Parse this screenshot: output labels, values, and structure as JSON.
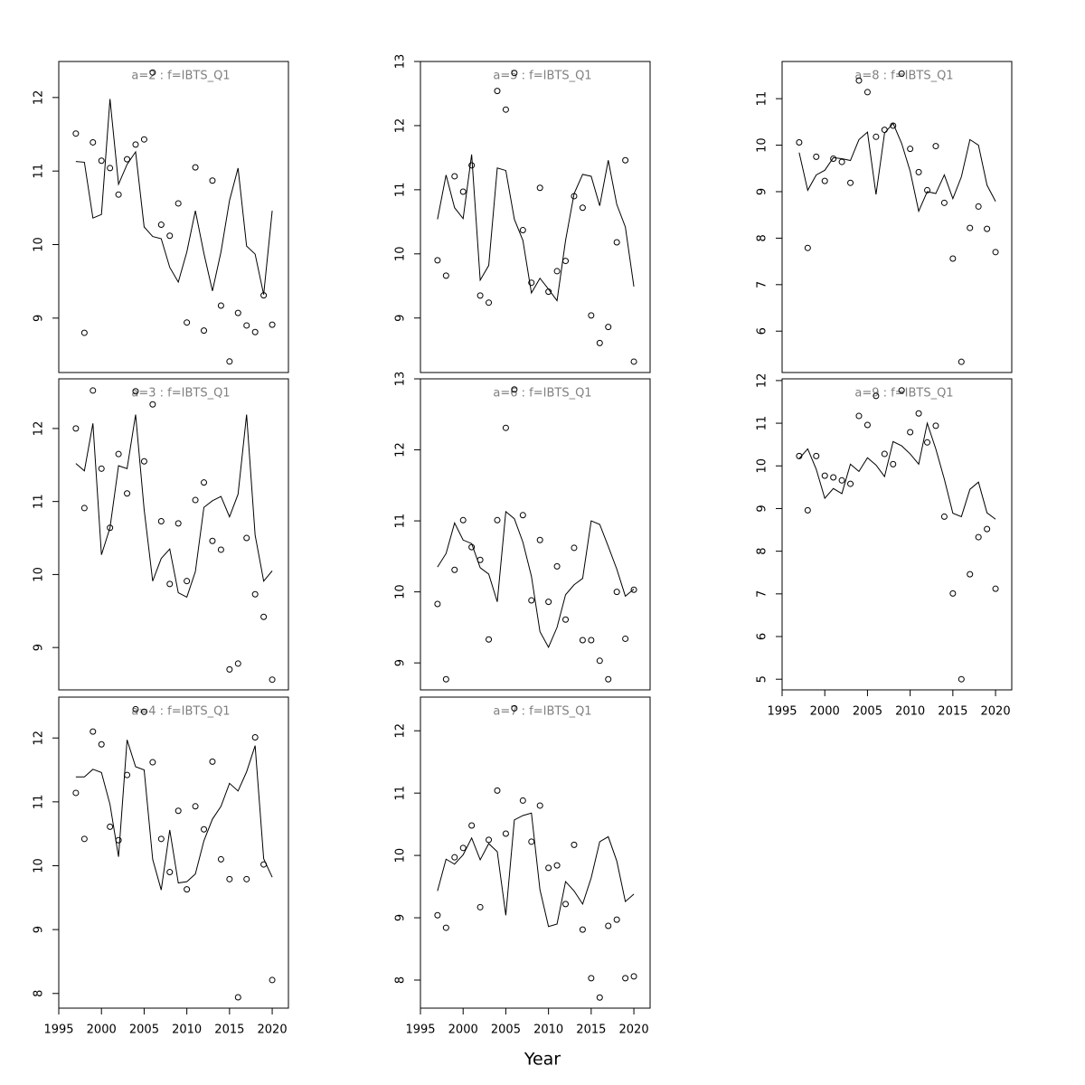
{
  "x_label": "Year",
  "chart_data": [
    {
      "type": "fit",
      "title": "a=2  :  f=IBTS_Q1",
      "x_axis": false,
      "x": [
        1997,
        1998,
        1999,
        2000,
        2001,
        2002,
        2003,
        2004,
        2005,
        2006,
        2007,
        2008,
        2009,
        2010,
        2011,
        2012,
        2013,
        2014,
        2015,
        2016,
        2017,
        2018,
        2019,
        2020
      ],
      "observed": [
        11.51,
        8.8,
        11.39,
        11.14,
        11.04,
        10.68,
        11.16,
        11.36,
        11.43,
        12.34,
        10.27,
        10.12,
        10.56,
        8.94,
        11.05,
        8.83,
        10.87,
        9.17,
        8.41,
        9.07,
        8.9,
        8.81,
        9.31,
        8.91
      ],
      "fitted": [
        11.13,
        11.12,
        10.36,
        10.41,
        11.98,
        10.82,
        11.09,
        11.26,
        10.24,
        10.11,
        10.08,
        9.69,
        9.49,
        9.9,
        10.46,
        9.88,
        9.37,
        9.9,
        10.6,
        11.04,
        9.98,
        9.87,
        9.32,
        10.46
      ],
      "xlim": [
        1995,
        2021.9
      ],
      "xticks": [
        1995,
        2000,
        2005,
        2010,
        2015,
        2020
      ],
      "ylim": [
        8.26,
        12.49
      ],
      "yticks": [
        9,
        10,
        11,
        12
      ]
    },
    {
      "type": "fit",
      "title": "a=3  :  f=IBTS_Q1",
      "x_axis": false,
      "x": [
        1997,
        1998,
        1999,
        2000,
        2001,
        2002,
        2003,
        2004,
        2005,
        2006,
        2007,
        2008,
        2009,
        2010,
        2011,
        2012,
        2013,
        2014,
        2015,
        2016,
        2017,
        2018,
        2019,
        2020
      ],
      "observed": [
        12.0,
        10.91,
        12.52,
        11.45,
        10.64,
        11.65,
        11.11,
        12.51,
        11.55,
        12.33,
        10.73,
        9.87,
        10.7,
        9.91,
        11.02,
        11.26,
        10.46,
        10.34,
        8.7,
        8.78,
        10.5,
        9.73,
        9.42,
        8.56
      ],
      "fitted": [
        11.52,
        11.42,
        12.07,
        10.27,
        10.64,
        11.49,
        11.45,
        12.19,
        10.89,
        9.91,
        10.22,
        10.35,
        9.75,
        9.69,
        10.04,
        10.92,
        11.01,
        11.07,
        10.79,
        11.1,
        12.19,
        10.54,
        9.91,
        10.05
      ],
      "xlim": [
        1995,
        2021.9
      ],
      "xticks": [
        1995,
        2000,
        2005,
        2010,
        2015,
        2020
      ],
      "ylim": [
        8.42,
        12.68
      ],
      "yticks": [
        9,
        10,
        11,
        12
      ]
    },
    {
      "type": "fit",
      "title": "a=4  :  f=IBTS_Q1",
      "x_axis": true,
      "x": [
        1997,
        1998,
        1999,
        2000,
        2001,
        2002,
        2003,
        2004,
        2005,
        2006,
        2007,
        2008,
        2009,
        2010,
        2011,
        2012,
        2013,
        2014,
        2015,
        2016,
        2017,
        2018,
        2019,
        2020
      ],
      "observed": [
        11.14,
        10.42,
        12.1,
        11.9,
        10.61,
        10.4,
        11.42,
        12.45,
        12.41,
        11.62,
        10.42,
        9.9,
        10.86,
        9.63,
        10.93,
        10.57,
        11.63,
        10.1,
        9.79,
        7.94,
        9.79,
        12.01,
        10.02,
        8.21
      ],
      "fitted": [
        11.39,
        11.39,
        11.51,
        11.46,
        10.96,
        10.14,
        11.97,
        11.55,
        11.5,
        10.1,
        9.62,
        10.56,
        9.73,
        9.75,
        9.87,
        10.39,
        10.73,
        10.93,
        11.29,
        11.17,
        11.47,
        11.88,
        10.11,
        9.82
      ],
      "xlim": [
        1995,
        2021.9
      ],
      "xticks": [
        1995,
        2000,
        2005,
        2010,
        2015,
        2020
      ],
      "ylim": [
        7.77,
        12.64
      ],
      "yticks": [
        8,
        9,
        10,
        11,
        12
      ]
    },
    {
      "type": "fit",
      "title": "a=5  :  f=IBTS_Q1",
      "x_axis": false,
      "x": [
        1997,
        1998,
        1999,
        2000,
        2001,
        2002,
        2003,
        2004,
        2005,
        2006,
        2007,
        2008,
        2009,
        2010,
        2011,
        2012,
        2013,
        2014,
        2015,
        2016,
        2017,
        2018,
        2019,
        2020
      ],
      "observed": [
        9.9,
        9.66,
        11.21,
        10.97,
        11.38,
        9.35,
        9.24,
        12.54,
        12.25,
        12.82,
        10.37,
        9.55,
        11.03,
        9.41,
        9.73,
        9.89,
        10.9,
        10.72,
        9.04,
        8.61,
        8.86,
        10.18,
        11.46,
        8.32
      ],
      "fitted": [
        10.54,
        11.23,
        10.72,
        10.55,
        11.55,
        9.59,
        9.82,
        11.34,
        11.3,
        10.54,
        10.21,
        9.39,
        9.62,
        9.45,
        9.27,
        10.21,
        10.94,
        11.24,
        11.21,
        10.75,
        11.46,
        10.77,
        10.42,
        9.49
      ],
      "xlim": [
        1995,
        2021.9
      ],
      "xticks": [
        1995,
        2000,
        2005,
        2010,
        2015,
        2020
      ],
      "ylim": [
        8.15,
        13
      ],
      "yticks": [
        9,
        10,
        11,
        12,
        13
      ]
    },
    {
      "type": "fit",
      "title": "a=6  :  f=IBTS_Q1",
      "x_axis": false,
      "x": [
        1997,
        1998,
        1999,
        2000,
        2001,
        2002,
        2003,
        2004,
        2005,
        2006,
        2007,
        2008,
        2009,
        2010,
        2011,
        2012,
        2013,
        2014,
        2015,
        2016,
        2017,
        2018,
        2019,
        2020
      ],
      "observed": [
        9.83,
        8.77,
        10.31,
        11.01,
        10.63,
        10.45,
        9.33,
        11.01,
        12.31,
        12.85,
        11.08,
        9.88,
        10.73,
        9.86,
        10.36,
        9.61,
        10.62,
        9.32,
        9.32,
        9.03,
        8.77,
        10.0,
        9.34,
        10.03
      ],
      "fitted": [
        10.35,
        10.54,
        10.97,
        10.73,
        10.68,
        10.34,
        10.25,
        9.86,
        11.13,
        11.03,
        10.7,
        10.22,
        9.44,
        9.22,
        9.5,
        9.96,
        10.1,
        10.19,
        11.0,
        10.95,
        10.64,
        10.32,
        9.94,
        10.04
      ],
      "xlim": [
        1995,
        2021.9
      ],
      "xticks": [
        1995,
        2000,
        2005,
        2010,
        2015,
        2020
      ],
      "ylim": [
        8.62,
        13
      ],
      "yticks": [
        9,
        10,
        11,
        12,
        13
      ]
    },
    {
      "type": "fit",
      "title": "a=7  :  f=IBTS_Q1",
      "x_axis": true,
      "x": [
        1997,
        1998,
        1999,
        2000,
        2001,
        2002,
        2003,
        2004,
        2005,
        2006,
        2007,
        2008,
        2009,
        2010,
        2011,
        2012,
        2013,
        2014,
        2015,
        2016,
        2017,
        2018,
        2019,
        2020
      ],
      "observed": [
        9.04,
        8.84,
        9.97,
        10.12,
        10.48,
        9.17,
        10.25,
        11.04,
        10.35,
        12.36,
        10.88,
        10.22,
        10.8,
        9.8,
        9.84,
        9.22,
        10.17,
        8.81,
        8.03,
        7.72,
        8.87,
        8.97,
        8.03,
        8.06
      ],
      "fitted": [
        9.43,
        9.94,
        9.86,
        10.01,
        10.28,
        9.93,
        10.19,
        10.06,
        9.04,
        10.57,
        10.64,
        10.68,
        9.45,
        8.86,
        8.9,
        9.58,
        9.43,
        9.22,
        9.64,
        10.22,
        10.3,
        9.91,
        9.26,
        9.38
      ],
      "xlim": [
        1995,
        2021.9
      ],
      "xticks": [
        1995,
        2000,
        2005,
        2010,
        2015,
        2020
      ],
      "ylim": [
        7.55,
        12.54
      ],
      "yticks": [
        8,
        9,
        10,
        11,
        12
      ]
    },
    {
      "type": "fit",
      "title": "a=8  :  f=IBTS_Q1",
      "x_axis": false,
      "x": [
        1997,
        1998,
        1999,
        2000,
        2001,
        2002,
        2003,
        2004,
        2005,
        2006,
        2007,
        2008,
        2009,
        2010,
        2011,
        2012,
        2013,
        2014,
        2015,
        2016,
        2017,
        2018,
        2019,
        2020
      ],
      "observed": [
        10.06,
        7.79,
        9.75,
        9.23,
        9.71,
        9.64,
        9.19,
        11.39,
        11.14,
        10.18,
        10.33,
        10.42,
        11.54,
        9.92,
        9.42,
        9.03,
        9.98,
        8.76,
        7.56,
        5.34,
        8.22,
        8.68,
        8.2,
        7.7
      ],
      "fitted": [
        9.84,
        9.03,
        9.36,
        9.46,
        9.73,
        9.71,
        9.67,
        10.12,
        10.28,
        8.94,
        10.26,
        10.47,
        10.04,
        9.44,
        8.58,
        9.0,
        8.96,
        9.36,
        8.85,
        9.32,
        10.12,
        10.0,
        9.14,
        8.79
      ],
      "xlim": [
        1995,
        2021.9
      ],
      "xticks": [
        1995,
        2000,
        2005,
        2010,
        2015,
        2020
      ],
      "ylim": [
        5.11,
        11.8
      ],
      "yticks": [
        6,
        7,
        8,
        9,
        10,
        11
      ]
    },
    {
      "type": "fit",
      "title": "a=9  :  f=IBTS_Q1",
      "x_axis": true,
      "x": [
        1997,
        1998,
        1999,
        2000,
        2001,
        2002,
        2003,
        2004,
        2005,
        2006,
        2007,
        2008,
        2009,
        2010,
        2011,
        2012,
        2013,
        2014,
        2015,
        2016,
        2017,
        2018,
        2019,
        2020
      ],
      "observed": [
        10.23,
        8.96,
        10.23,
        9.77,
        9.73,
        9.66,
        9.58,
        11.17,
        10.96,
        11.64,
        10.28,
        10.04,
        11.77,
        10.79,
        11.23,
        10.55,
        10.94,
        8.81,
        7.01,
        5.0,
        7.46,
        8.33,
        8.52,
        7.12
      ],
      "fitted": [
        10.17,
        10.4,
        9.92,
        9.24,
        9.47,
        9.35,
        10.04,
        9.87,
        10.19,
        10.02,
        9.75,
        10.57,
        10.47,
        10.28,
        10.04,
        11.0,
        10.4,
        9.69,
        8.89,
        8.81,
        9.45,
        9.62,
        8.9,
        8.75
      ],
      "xlim": [
        1995,
        2021.9
      ],
      "xticks": [
        1995,
        2000,
        2005,
        2010,
        2015,
        2020
      ],
      "ylim": [
        4.75,
        12.04
      ],
      "yticks": [
        5,
        6,
        7,
        8,
        9,
        10,
        11,
        12
      ]
    }
  ]
}
